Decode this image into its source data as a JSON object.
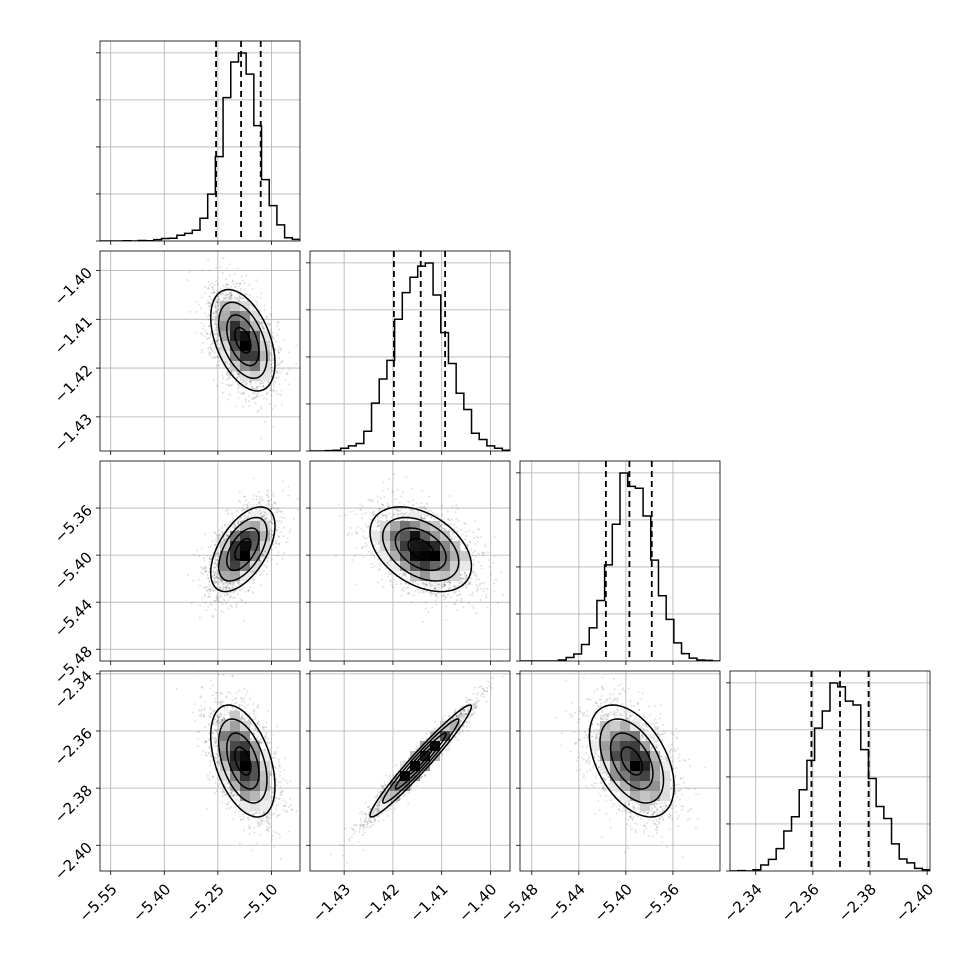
{
  "chart_data": {
    "type": "corner",
    "colors": {
      "axes": "#000000",
      "grid": "#b0b0b0",
      "hist": "#000000",
      "points": "#000000",
      "density_max": "#000000",
      "background": "#ffffff"
    },
    "grid": true,
    "quantile_line_style": "dashed",
    "parameters": [
      {
        "range": [
          -5.58,
          -5.02
        ],
        "ticks": [
          "−5.55",
          "−5.40",
          "−5.25",
          "−5.10"
        ],
        "tick_values": [
          -5.55,
          -5.4,
          -5.25,
          -5.1
        ],
        "quantiles": [
          -5.255,
          -5.185,
          -5.13
        ],
        "mean": -5.18,
        "sd": 0.045
      },
      {
        "range": [
          -1.437,
          -1.396
        ],
        "ticks": [
          "−1.40",
          "−1.41",
          "−1.42",
          "−1.43"
        ],
        "tick_values": [
          -1.4,
          -1.41,
          -1.42,
          -1.43
        ],
        "quantiles": [
          -1.4198,
          -1.4143,
          -1.4093
        ],
        "mean": -1.4143,
        "sd": 0.0052
      },
      {
        "range": [
          -5.49,
          -5.32
        ],
        "ticks": [
          "−5.36",
          "−5.40",
          "−5.44",
          "−5.48"
        ],
        "tick_values": [
          -5.36,
          -5.4,
          -5.44,
          -5.48
        ],
        "quantiles": [
          -5.417,
          -5.397,
          -5.378
        ],
        "mean": -5.395,
        "sd": 0.018
      },
      {
        "range": [
          -2.409,
          -2.339
        ],
        "ticks": [
          "−2.34",
          "−2.36",
          "−2.38",
          "−2.40"
        ],
        "tick_values": [
          -2.34,
          -2.36,
          -2.38,
          -2.4
        ],
        "quantiles": [
          -2.3805,
          -2.3705,
          -2.3605
        ],
        "mean": -2.3705,
        "sd": 0.0098
      }
    ],
    "bottom_tick_labels": [
      [
        "−5.55",
        "−5.40",
        "−5.25",
        "−5.10"
      ],
      [
        "−1.43",
        "−1.42",
        "−1.41",
        "−1.40"
      ],
      [
        "−5.48",
        "−5.44",
        "−5.40",
        "−5.36"
      ],
      [
        "−2.40",
        "−2.38",
        "−2.36",
        "−2.34"
      ]
    ],
    "left_tick_labels": [
      [],
      [
        "−1.40",
        "−1.41",
        "−1.42",
        "−1.43"
      ],
      [
        "−5.36",
        "−5.40",
        "−5.44",
        "−5.48"
      ],
      [
        "−2.34",
        "−2.36",
        "−2.38",
        "−2.40"
      ]
    ],
    "correlations": {
      "1-0": -0.45,
      "2-0": 0.55,
      "2-1": -0.4,
      "3-0": -0.45,
      "3-1": 0.97,
      "3-2": -0.45
    },
    "xlabels": [
      "",
      "",
      "",
      ""
    ],
    "ylabels": [
      "",
      "",
      "",
      ""
    ],
    "title": ""
  }
}
